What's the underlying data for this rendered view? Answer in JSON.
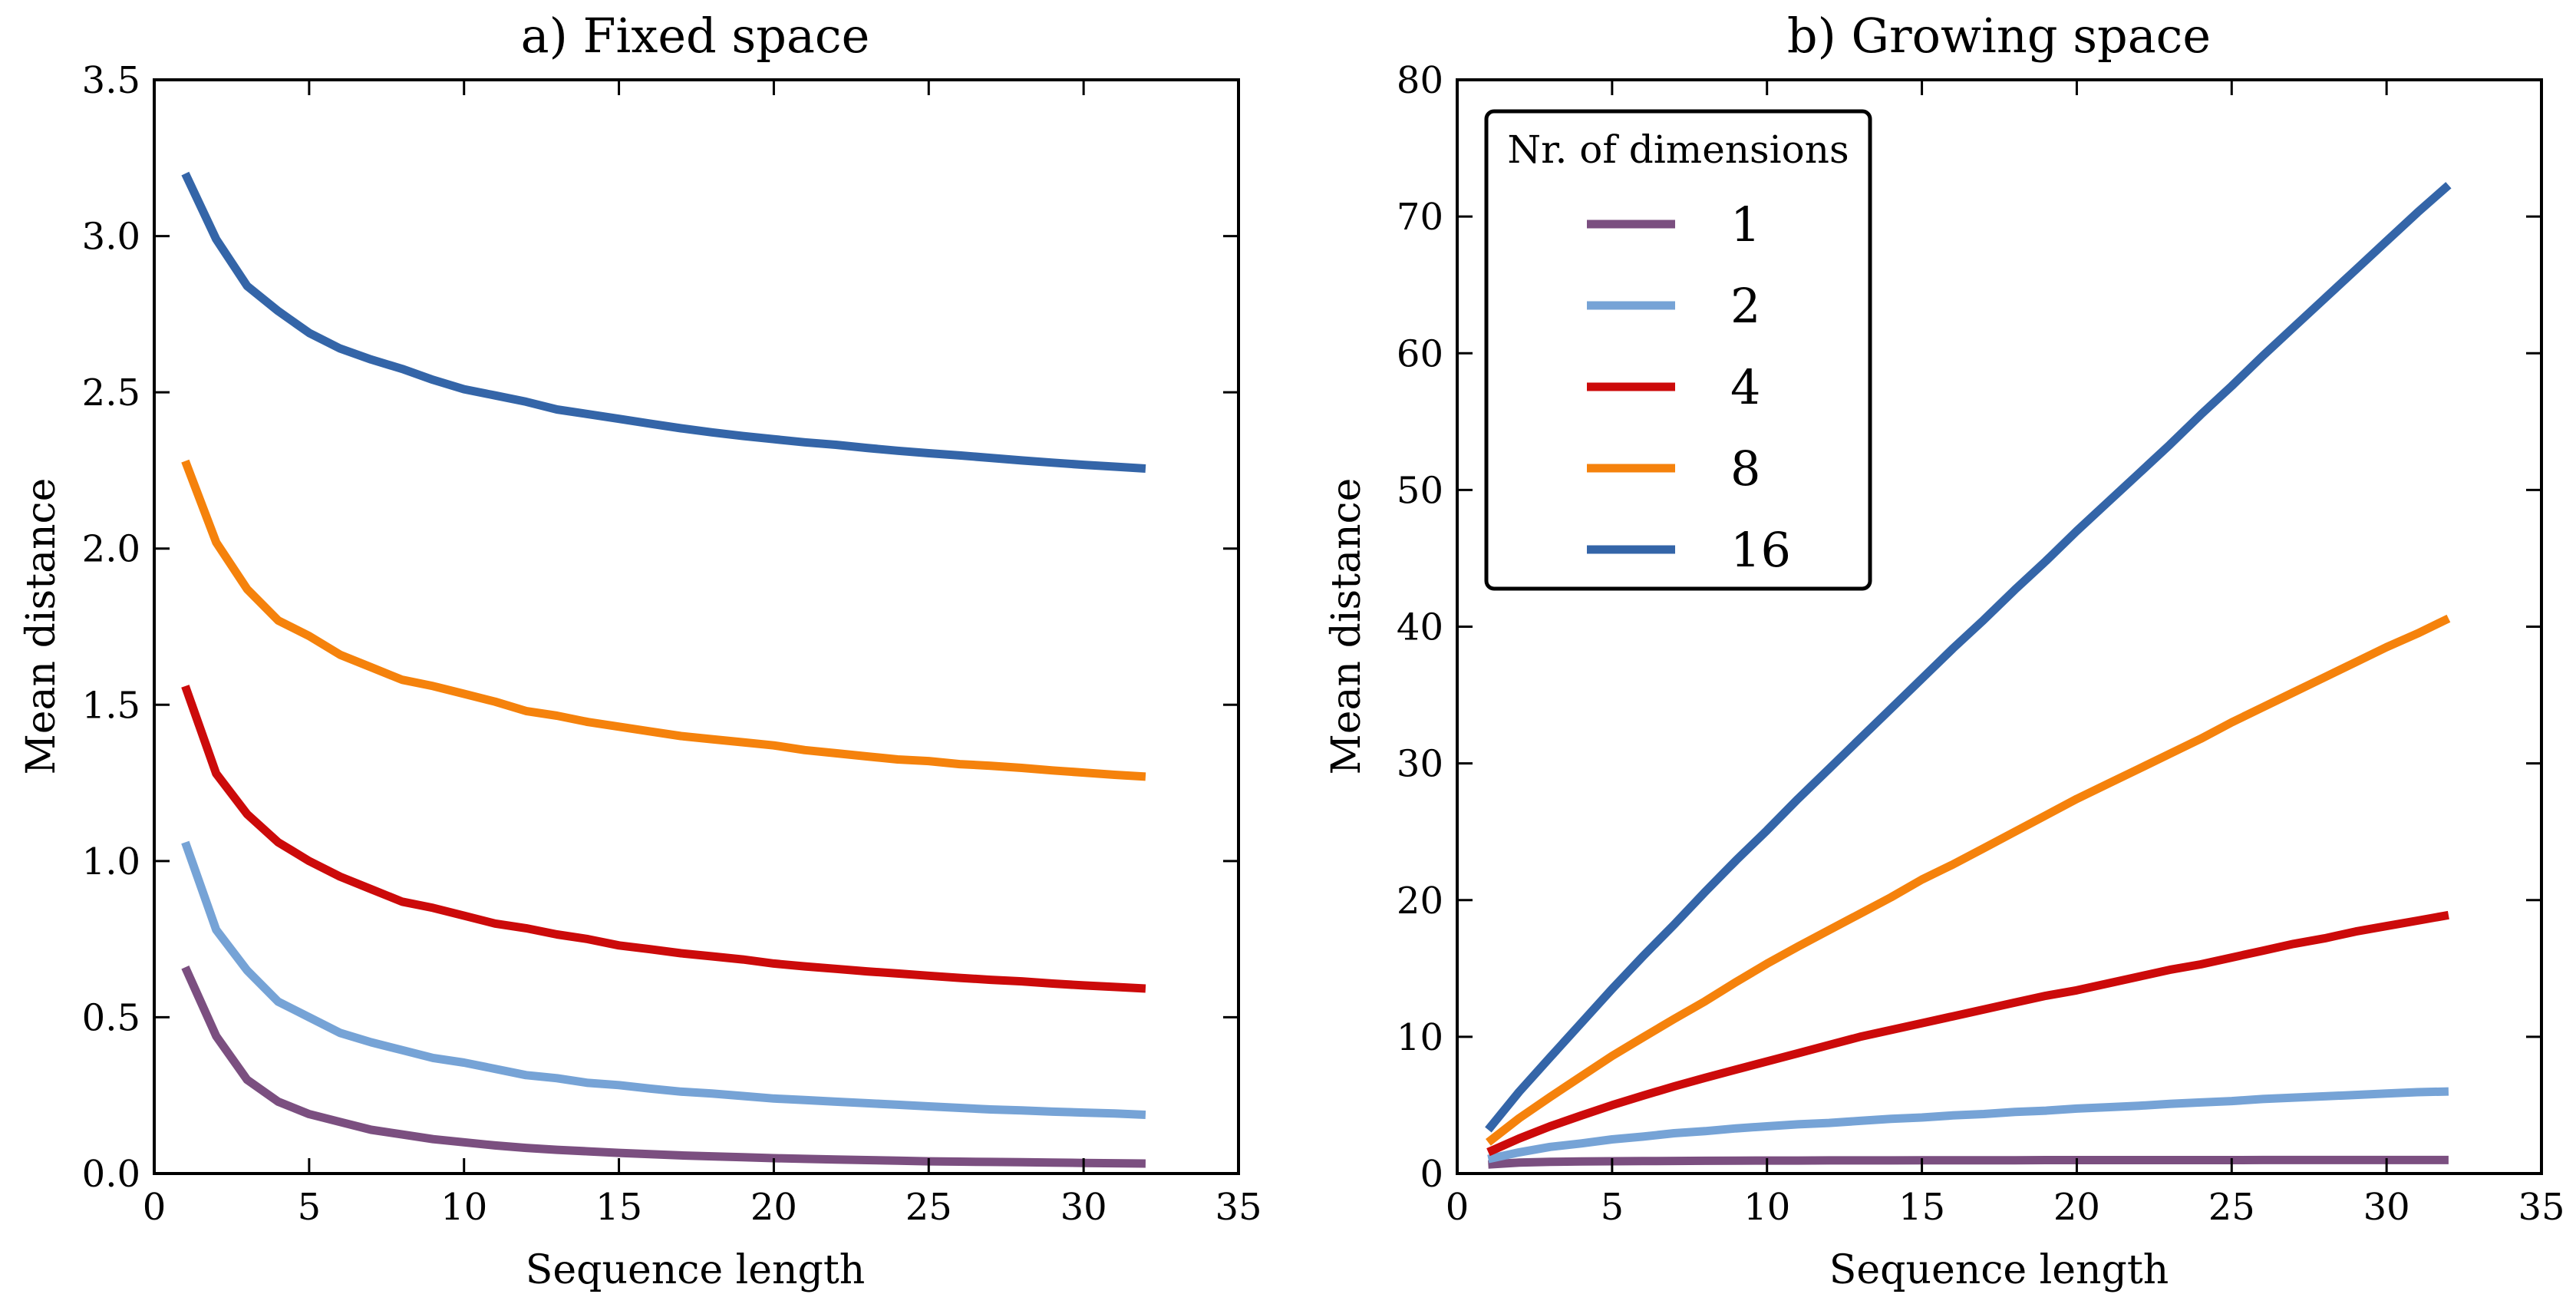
{
  "chart_data": [
    {
      "type": "line",
      "title": "a) Fixed space",
      "xlabel": "Sequence length",
      "ylabel": "Mean distance",
      "xlim": [
        0,
        35
      ],
      "ylim": [
        0,
        3.5
      ],
      "xticks": [
        "0",
        "5",
        "10",
        "15",
        "20",
        "25",
        "30",
        "35"
      ],
      "yticks": [
        "0.0",
        "0.5",
        "1.0",
        "1.5",
        "2.0",
        "2.5",
        "3.0",
        "3.5"
      ],
      "grid": false,
      "x": [
        1,
        2,
        3,
        4,
        5,
        6,
        7,
        8,
        9,
        10,
        11,
        12,
        13,
        14,
        15,
        16,
        17,
        18,
        19,
        20,
        21,
        22,
        23,
        24,
        25,
        26,
        27,
        28,
        29,
        30,
        31,
        32
      ],
      "series": [
        {
          "name": "1",
          "color": "#7b4f80",
          "values": [
            0.66,
            0.44,
            0.3,
            0.23,
            0.19,
            0.165,
            0.14,
            0.125,
            0.11,
            0.1,
            0.09,
            0.082,
            0.076,
            0.071,
            0.066,
            0.062,
            0.058,
            0.055,
            0.052,
            0.049,
            0.047,
            0.045,
            0.043,
            0.041,
            0.039,
            0.038,
            0.037,
            0.036,
            0.035,
            0.034,
            0.033,
            0.032
          ]
        },
        {
          "name": "2",
          "color": "#76a3d6",
          "values": [
            1.06,
            0.78,
            0.65,
            0.55,
            0.5,
            0.45,
            0.42,
            0.395,
            0.37,
            0.355,
            0.335,
            0.315,
            0.305,
            0.29,
            0.283,
            0.272,
            0.262,
            0.256,
            0.248,
            0.24,
            0.235,
            0.23,
            0.225,
            0.22,
            0.215,
            0.21,
            0.205,
            0.202,
            0.198,
            0.195,
            0.192,
            0.188
          ]
        },
        {
          "name": "4",
          "color": "#cc0a0a",
          "values": [
            1.56,
            1.28,
            1.15,
            1.06,
            1.0,
            0.95,
            0.91,
            0.87,
            0.85,
            0.825,
            0.8,
            0.785,
            0.765,
            0.75,
            0.73,
            0.718,
            0.705,
            0.695,
            0.685,
            0.672,
            0.663,
            0.655,
            0.647,
            0.64,
            0.633,
            0.626,
            0.62,
            0.615,
            0.608,
            0.602,
            0.597,
            0.592
          ]
        },
        {
          "name": "8",
          "color": "#f5820c",
          "values": [
            2.28,
            2.02,
            1.87,
            1.77,
            1.72,
            1.66,
            1.62,
            1.58,
            1.56,
            1.535,
            1.51,
            1.48,
            1.465,
            1.445,
            1.43,
            1.415,
            1.4,
            1.39,
            1.38,
            1.37,
            1.355,
            1.345,
            1.335,
            1.325,
            1.32,
            1.31,
            1.305,
            1.298,
            1.29,
            1.283,
            1.276,
            1.27
          ]
        },
        {
          "name": "16",
          "color": "#3465a8",
          "values": [
            3.2,
            2.99,
            2.84,
            2.76,
            2.69,
            2.64,
            2.605,
            2.575,
            2.54,
            2.51,
            2.49,
            2.47,
            2.445,
            2.43,
            2.415,
            2.4,
            2.385,
            2.372,
            2.36,
            2.35,
            2.34,
            2.332,
            2.322,
            2.313,
            2.305,
            2.298,
            2.29,
            2.282,
            2.275,
            2.268,
            2.262,
            2.256
          ]
        }
      ]
    },
    {
      "type": "line",
      "title": "b) Growing space",
      "xlabel": "Sequence length",
      "ylabel": "Mean distance",
      "xlim": [
        0,
        35
      ],
      "ylim": [
        0,
        80
      ],
      "xticks": [
        "0",
        "5",
        "10",
        "15",
        "20",
        "25",
        "30",
        "35"
      ],
      "yticks": [
        "0",
        "10",
        "20",
        "30",
        "40",
        "50",
        "60",
        "70",
        "80"
      ],
      "grid": false,
      "legend": {
        "title": "Nr. of dimensions",
        "location": "upper-left"
      },
      "x": [
        1,
        2,
        3,
        4,
        5,
        6,
        7,
        8,
        9,
        10,
        11,
        12,
        13,
        14,
        15,
        16,
        17,
        18,
        19,
        20,
        21,
        22,
        23,
        24,
        25,
        26,
        27,
        28,
        29,
        30,
        31,
        32
      ],
      "series": [
        {
          "name": "1",
          "color": "#7b4f80",
          "values": [
            0.66,
            0.8,
            0.86,
            0.88,
            0.9,
            0.91,
            0.92,
            0.93,
            0.94,
            0.95,
            0.95,
            0.96,
            0.96,
            0.96,
            0.97,
            0.97,
            0.97,
            0.97,
            0.98,
            0.98,
            0.98,
            0.98,
            0.98,
            0.98,
            0.98,
            0.99,
            0.99,
            0.99,
            0.99,
            0.99,
            0.99,
            0.99
          ]
        },
        {
          "name": "2",
          "color": "#76a3d6",
          "values": [
            1.06,
            1.55,
            1.95,
            2.2,
            2.5,
            2.7,
            2.95,
            3.1,
            3.3,
            3.45,
            3.6,
            3.7,
            3.85,
            4.0,
            4.1,
            4.25,
            4.35,
            4.5,
            4.6,
            4.75,
            4.85,
            4.95,
            5.1,
            5.2,
            5.3,
            5.45,
            5.55,
            5.65,
            5.75,
            5.85,
            5.95,
            6.0
          ]
        },
        {
          "name": "4",
          "color": "#cc0a0a",
          "values": [
            1.56,
            2.56,
            3.45,
            4.24,
            5.0,
            5.7,
            6.37,
            7.0,
            7.6,
            8.2,
            8.8,
            9.4,
            10.0,
            10.5,
            11.0,
            11.5,
            12.0,
            12.5,
            13.0,
            13.4,
            13.9,
            14.4,
            14.9,
            15.3,
            15.8,
            16.3,
            16.8,
            17.2,
            17.7,
            18.1,
            18.5,
            18.9
          ]
        },
        {
          "name": "8",
          "color": "#f5820c",
          "values": [
            2.28,
            4.04,
            5.6,
            7.1,
            8.6,
            9.96,
            11.3,
            12.6,
            14.0,
            15.35,
            16.6,
            17.8,
            19.0,
            20.2,
            21.5,
            22.6,
            23.8,
            25.0,
            26.2,
            27.4,
            28.5,
            29.6,
            30.7,
            31.8,
            33.0,
            34.1,
            35.2,
            36.3,
            37.4,
            38.5,
            39.5,
            40.6
          ]
        },
        {
          "name": "16",
          "color": "#3465a8",
          "values": [
            3.2,
            5.98,
            8.5,
            11.0,
            13.5,
            15.9,
            18.2,
            20.6,
            22.9,
            25.1,
            27.4,
            29.6,
            31.8,
            34.0,
            36.2,
            38.4,
            40.5,
            42.7,
            44.8,
            47.0,
            49.1,
            51.2,
            53.3,
            55.5,
            57.6,
            59.8,
            61.9,
            64.0,
            66.1,
            68.2,
            70.3,
            72.3
          ]
        }
      ]
    }
  ]
}
